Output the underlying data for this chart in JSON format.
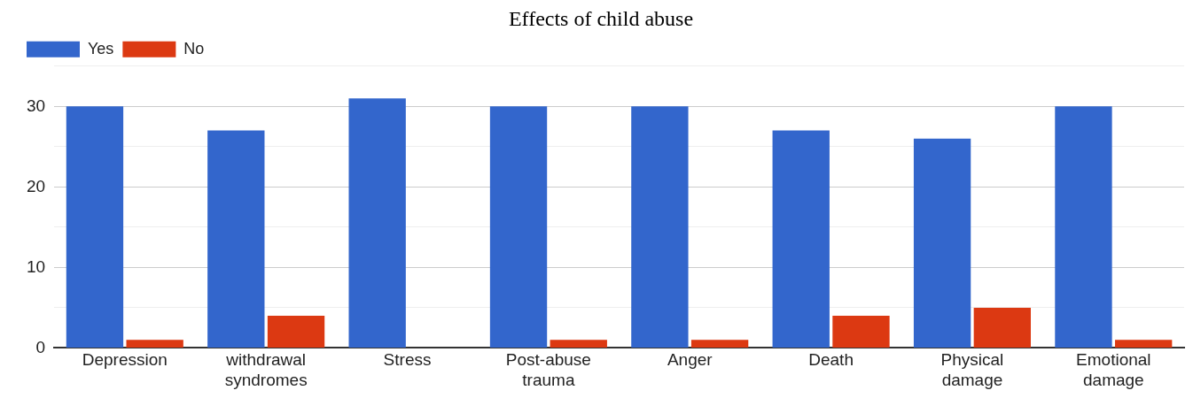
{
  "chart_data": {
    "type": "bar",
    "title": "Effects of child abuse",
    "categories": [
      "Depression",
      "withdrawal syndromes",
      "Stress",
      "Post-abuse trauma",
      "Anger",
      "Death",
      "Physical damage",
      "Emotional damage"
    ],
    "series": [
      {
        "name": "Yes",
        "color": "#3366cc",
        "values": [
          30,
          27,
          31,
          30,
          30,
          27,
          26,
          30
        ]
      },
      {
        "name": "No",
        "color": "#dc3912",
        "values": [
          1,
          4,
          0,
          1,
          1,
          4,
          5,
          1
        ]
      }
    ],
    "ylim": [
      0,
      35
    ],
    "yticks": [
      0,
      {
        "value": 5,
        "label": null
      },
      10,
      {
        "value": 15,
        "label": null
      },
      20,
      {
        "value": 25,
        "label": null
      },
      30,
      {
        "value": 35,
        "label": null
      }
    ],
    "grid": true,
    "legend": "top left"
  }
}
